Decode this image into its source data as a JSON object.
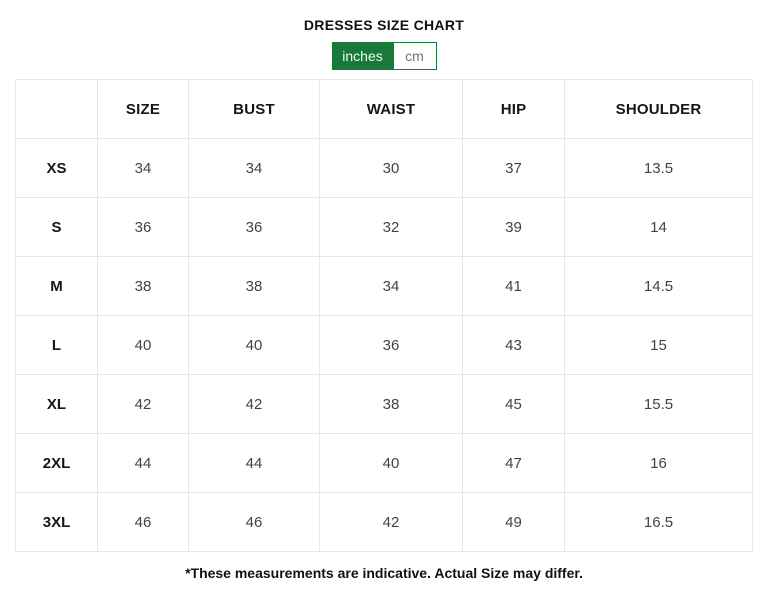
{
  "page": {
    "title": "DRESSES SIZE CHART",
    "footnote": "*These measurements are indicative. Actual Size may differ."
  },
  "unit_toggle": {
    "options": [
      {
        "label": "inches",
        "active": true
      },
      {
        "label": "cm",
        "active": false
      }
    ],
    "selected": "inches"
  },
  "size_chart": {
    "type": "table",
    "columns": [
      "SIZE",
      "BUST",
      "WAIST",
      "HIP",
      "SHOULDER"
    ],
    "rows": [
      {
        "label": "XS",
        "values": [
          "34",
          "34",
          "30",
          "37",
          "13.5"
        ]
      },
      {
        "label": "S",
        "values": [
          "36",
          "36",
          "32",
          "39",
          "14"
        ]
      },
      {
        "label": "M",
        "values": [
          "38",
          "38",
          "34",
          "41",
          "14.5"
        ]
      },
      {
        "label": "L",
        "values": [
          "40",
          "40",
          "36",
          "43",
          "15"
        ]
      },
      {
        "label": "XL",
        "values": [
          "42",
          "42",
          "38",
          "45",
          "15.5"
        ]
      },
      {
        "label": "2XL",
        "values": [
          "44",
          "44",
          "40",
          "47",
          "16"
        ]
      },
      {
        "label": "3XL",
        "values": [
          "46",
          "46",
          "42",
          "49",
          "16.5"
        ]
      }
    ]
  },
  "colors": {
    "accent_green": "#177a3a",
    "active_toggle_text": "#f2fbf0",
    "inactive_toggle_text": "#6b7280",
    "table_border": "#e4e6e8",
    "heading_text": "#14161a",
    "value_text": "#40444a"
  }
}
